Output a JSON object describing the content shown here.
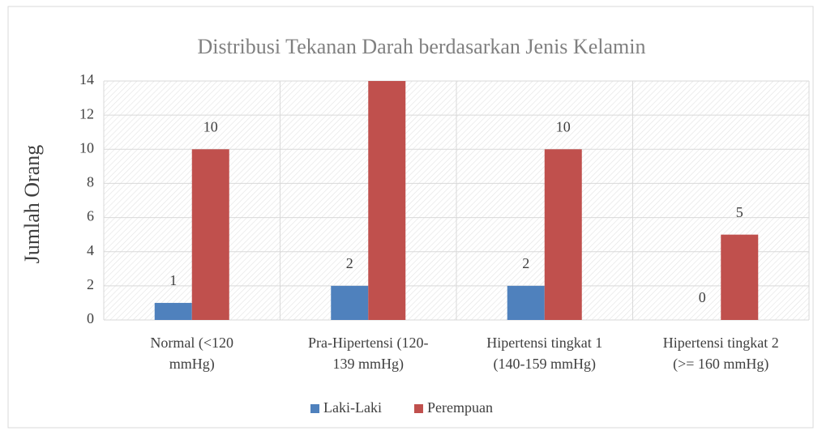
{
  "chart_data": {
    "type": "bar",
    "title": "Distribusi Tekanan Darah berdasarkan Jenis Kelamin",
    "y_label": "Jumlah Orang",
    "categories": [
      [
        "Normal (<120",
        "mmHg)"
      ],
      [
        "Pra-Hipertensi (120-",
        "139 mmHg)"
      ],
      [
        "Hipertensi tingkat 1",
        "(140-159 mmHg)"
      ],
      [
        "Hipertensi tingkat 2",
        "(>= 160 mmHg)"
      ]
    ],
    "series": [
      {
        "name": "Laki-Laki",
        "color": "#4f81bd",
        "values": [
          1,
          2,
          2,
          0
        ]
      },
      {
        "name": "Perempuan",
        "color": "#c0504d",
        "values": [
          10,
          14,
          10,
          5
        ]
      }
    ],
    "ylim": [
      0,
      14
    ],
    "yticks": [
      0,
      2,
      4,
      6,
      8,
      10,
      12,
      14
    ],
    "grid": true,
    "legend": "bottom"
  }
}
